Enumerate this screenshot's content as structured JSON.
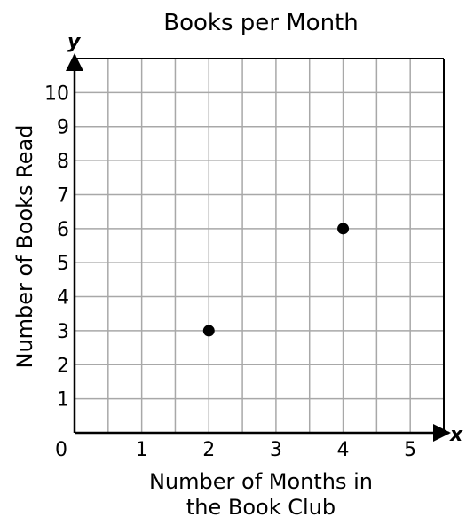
{
  "chart_data": {
    "type": "scatter",
    "title": "Books per Month",
    "xlabel_lines": [
      "Number of Months in",
      "the Book Club"
    ],
    "ylabel": "Number of Books Read",
    "x_axis_letter": "x",
    "y_axis_letter": "y",
    "origin_label": "0",
    "xlim": [
      0,
      5.5
    ],
    "ylim": [
      0,
      11
    ],
    "x_ticks": [
      {
        "value": 1,
        "label": "1"
      },
      {
        "value": 2,
        "label": "2"
      },
      {
        "value": 3,
        "label": "3"
      },
      {
        "value": 4,
        "label": "4"
      },
      {
        "value": 5,
        "label": "5"
      }
    ],
    "y_ticks": [
      {
        "value": 1,
        "label": "1"
      },
      {
        "value": 2,
        "label": "2"
      },
      {
        "value": 3,
        "label": "3"
      },
      {
        "value": 4,
        "label": "4"
      },
      {
        "value": 5,
        "label": "5"
      },
      {
        "value": 6,
        "label": "6"
      },
      {
        "value": 7,
        "label": "7"
      },
      {
        "value": 8,
        "label": "8"
      },
      {
        "value": 9,
        "label": "9"
      },
      {
        "value": 10,
        "label": "10"
      }
    ],
    "grid": true,
    "grid_step_x": 0.5,
    "grid_step_y": 1,
    "points": [
      {
        "x": 2,
        "y": 3
      },
      {
        "x": 4,
        "y": 6
      }
    ],
    "colors": {
      "grid": "#a8a8a8",
      "axis": "#000000",
      "point": "#000000"
    }
  }
}
